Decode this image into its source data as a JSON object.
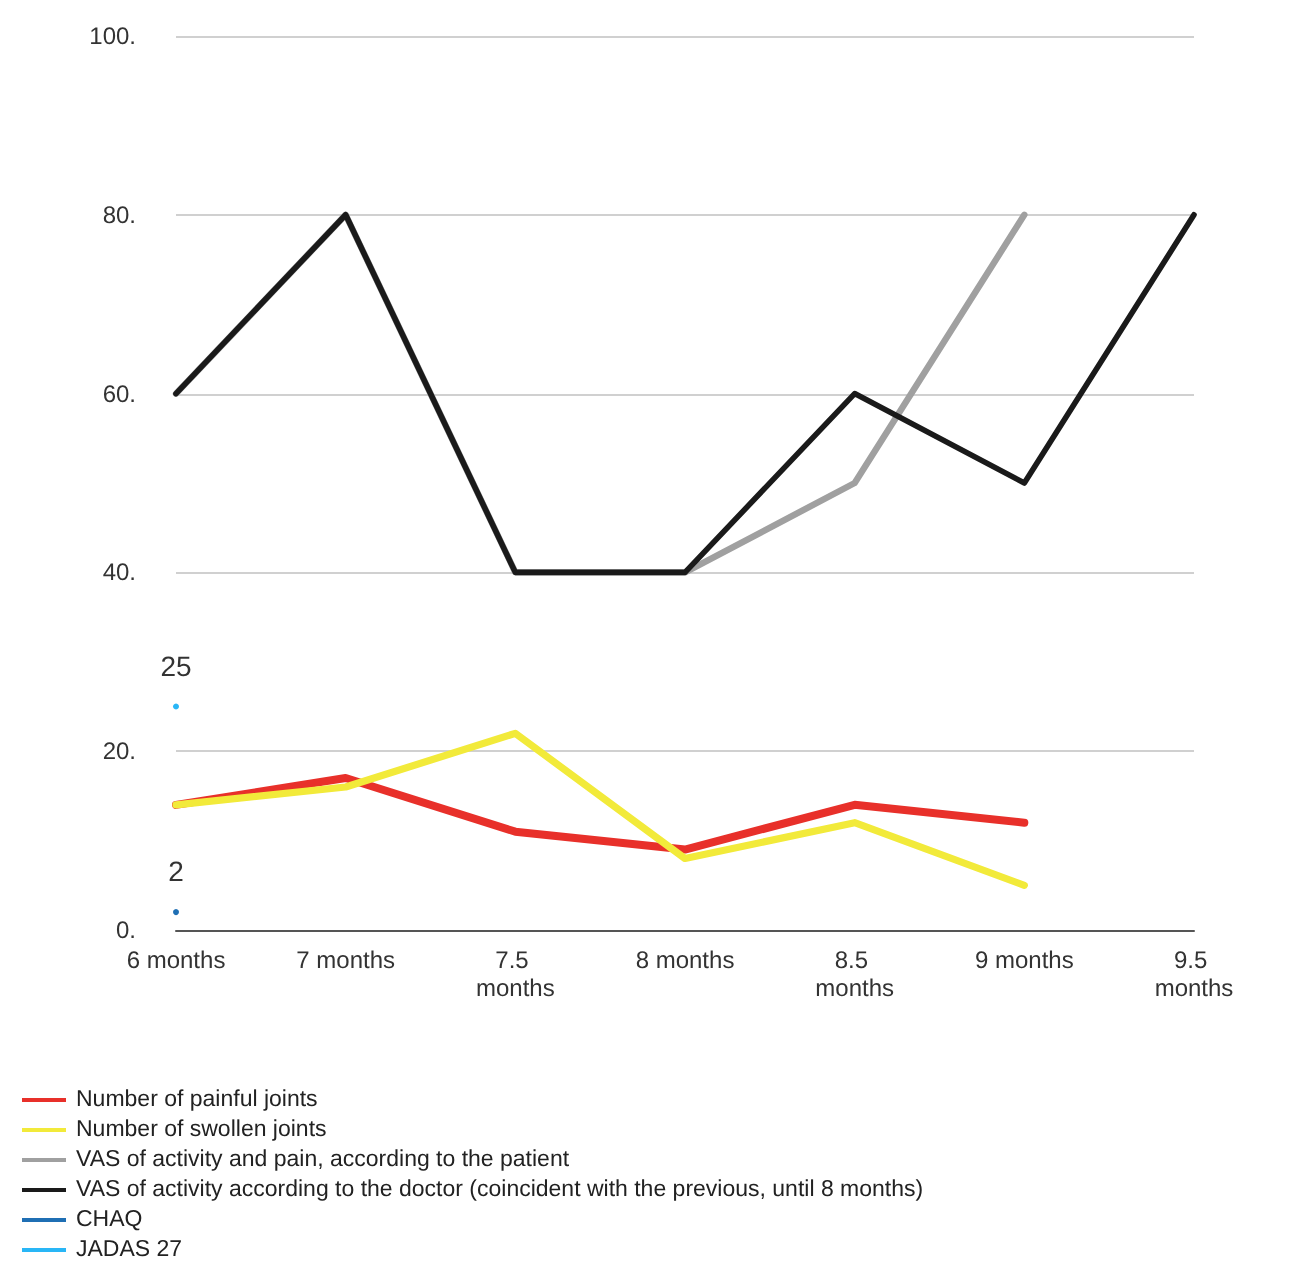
{
  "chart_data": {
    "type": "line",
    "categories": [
      "6 months",
      "7 months",
      "7.5 months",
      "8 months",
      "8.5 months",
      "9 months",
      "9.5 months"
    ],
    "ylim": [
      0,
      100
    ],
    "yticks": [
      {
        "value": 0,
        "label": "0."
      },
      {
        "value": 20,
        "label": "20."
      },
      {
        "value": 40,
        "label": "40."
      },
      {
        "value": 60,
        "label": "60."
      },
      {
        "value": 80,
        "label": "80."
      },
      {
        "value": 100,
        "label": "100."
      }
    ],
    "grid": "y",
    "legend": "bottom left",
    "marker": "none",
    "line_style": "solid",
    "series": [
      {
        "name": "Number of painful joints",
        "color": "#e8302a",
        "values": [
          14,
          17,
          11,
          9,
          14,
          12,
          null
        ]
      },
      {
        "name": "Number of swollen joints",
        "color": "#f2ea3a",
        "values": [
          14,
          16,
          22,
          8,
          12,
          5,
          null
        ]
      },
      {
        "name": "VAS of activity and pain, according to the patient",
        "color": "#a0a0a0",
        "values": [
          60,
          80,
          40,
          40,
          50,
          80,
          null
        ]
      },
      {
        "name": "VAS of activity according to the doctor (coincident with the previous, until 8 months)",
        "color": "#1a1a1a",
        "values": [
          60,
          80,
          40,
          40,
          60,
          50,
          80
        ]
      },
      {
        "name": "CHAQ",
        "color": "#1f6fb4",
        "marker": "circle",
        "values": [
          2,
          null,
          null,
          null,
          null,
          null,
          null
        ],
        "value_labels": [
          "2",
          null,
          null,
          null,
          null,
          null,
          null
        ]
      },
      {
        "name": "JADAS 27",
        "color": "#29b6f6",
        "marker": "circle",
        "values": [
          25,
          null,
          null,
          null,
          null,
          null,
          null
        ],
        "value_labels": [
          "25",
          null,
          null,
          null,
          null,
          null,
          null
        ]
      }
    ]
  }
}
